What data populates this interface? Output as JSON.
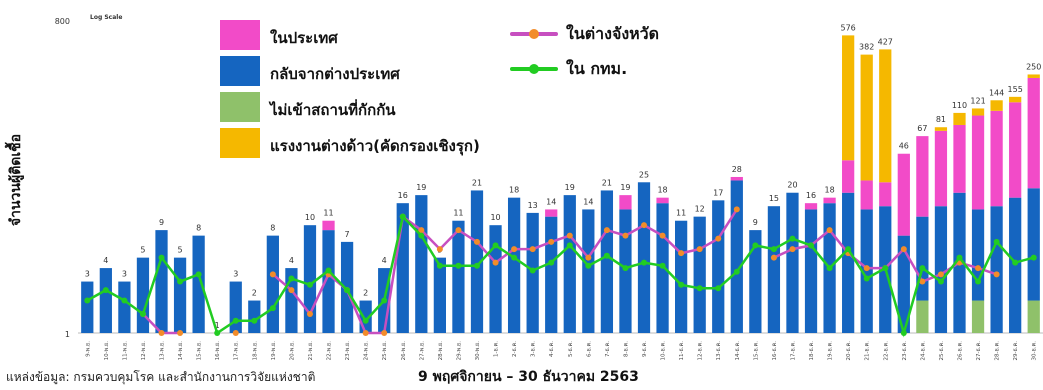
{
  "chart_data": {
    "type": "bar",
    "scale_note": "Log Scale",
    "ylabel": "จำนวนผู้ติดเชื้อ",
    "xlabel": "9 พฤศจิกายน – 30 ธันวาคม 2563",
    "y_ticks": [
      "1",
      "800"
    ],
    "ylim": [
      1,
      800
    ],
    "y_scale": "log",
    "source": "แหล่งข้อมูล: กรมควบคุมโรค และสำนักงานการวิจัยแห่งชาติ",
    "categories": [
      "9-พ.ย.",
      "10-พ.ย.",
      "11-พ.ย.",
      "12-พ.ย.",
      "13-พ.ย.",
      "14-พ.ย.",
      "15-พ.ย.",
      "16-พ.ย.",
      "17-พ.ย.",
      "18-พ.ย.",
      "19-พ.ย.",
      "20-พ.ย.",
      "21-พ.ย.",
      "22-พ.ย.",
      "23-พ.ย.",
      "24-พ.ย.",
      "25-พ.ย.",
      "26-พ.ย.",
      "27-พ.ย.",
      "28-พ.ย.",
      "29-พ.ย.",
      "30-พ.ย.",
      "1-ธ.ค.",
      "2-ธ.ค.",
      "3-ธ.ค.",
      "4-ธ.ค.",
      "5-ธ.ค.",
      "6-ธ.ค.",
      "7-ธ.ค.",
      "8-ธ.ค.",
      "9-ธ.ค.",
      "10-ธ.ค.",
      "11-ธ.ค.",
      "12-ธ.ค.",
      "13-ธ.ค.",
      "14-ธ.ค.",
      "15-ธ.ค.",
      "16-ธ.ค.",
      "17-ธ.ค.",
      "18-ธ.ค.",
      "19-ธ.ค.",
      "20-ธ.ค.",
      "21-ธ.ค.",
      "22-ธ.ค.",
      "23-ธ.ค.",
      "24-ธ.ค.",
      "25-ธ.ค.",
      "26-ธ.ค.",
      "27-ธ.ค.",
      "28-ธ.ค.",
      "29-ธ.ค.",
      "30-ธ.ค."
    ],
    "totals": [
      3,
      4,
      3,
      5,
      9,
      5,
      8,
      1,
      3,
      2,
      8,
      4,
      10,
      11,
      7,
      2,
      4,
      16,
      19,
      5,
      11,
      21,
      10,
      18,
      13,
      14,
      19,
      14,
      21,
      19,
      25,
      18,
      11,
      12,
      17,
      28,
      9,
      15,
      20,
      16,
      18,
      576,
      382,
      427,
      46,
      67,
      81,
      110,
      121,
      144,
      155,
      250
    ],
    "series": [
      {
        "name": "ในประเทศ",
        "color": "#f24bc8",
        "values": [
          0,
          0,
          0,
          0,
          0,
          0,
          0,
          0,
          0,
          0,
          0,
          0,
          0,
          2,
          0,
          0,
          0,
          0,
          0,
          0,
          0,
          0,
          0,
          0,
          0,
          2,
          0,
          0,
          0,
          5,
          0,
          2,
          0,
          0,
          0,
          2,
          0,
          0,
          0,
          2,
          2,
          20,
          12,
          10,
          38,
          55,
          60,
          65,
          90,
          100,
          120,
          210
        ]
      },
      {
        "name": "กลับจากต่างประเทศ",
        "color": "#1565c0",
        "values": [
          3,
          4,
          3,
          5,
          9,
          5,
          8,
          1,
          3,
          2,
          8,
          4,
          10,
          9,
          7,
          2,
          4,
          16,
          19,
          5,
          11,
          21,
          10,
          18,
          13,
          12,
          19,
          14,
          21,
          14,
          25,
          16,
          11,
          12,
          17,
          26,
          9,
          15,
          20,
          14,
          16,
          20,
          14,
          15,
          8,
          10,
          15,
          20,
          12,
          15,
          18,
          20
        ]
      },
      {
        "name": "ไม่เข้าสถานที่กักกัน",
        "color": "#8fc16a",
        "values": [
          0,
          0,
          0,
          0,
          0,
          0,
          0,
          0,
          0,
          0,
          0,
          0,
          0,
          0,
          0,
          0,
          0,
          0,
          0,
          0,
          0,
          0,
          0,
          0,
          0,
          0,
          0,
          0,
          0,
          0,
          0,
          0,
          0,
          0,
          0,
          0,
          0,
          0,
          0,
          0,
          0,
          0,
          0,
          0,
          0,
          2,
          0,
          0,
          2,
          0,
          0,
          2
        ]
      },
      {
        "name": "แรงงานต่างด้าว(คัดกรองเชิงรุก)",
        "color": "#f5b800",
        "values": [
          0,
          0,
          0,
          0,
          0,
          0,
          0,
          0,
          0,
          0,
          0,
          0,
          0,
          0,
          0,
          0,
          0,
          0,
          0,
          0,
          0,
          0,
          0,
          0,
          0,
          0,
          0,
          0,
          0,
          0,
          0,
          0,
          0,
          0,
          0,
          0,
          0,
          0,
          0,
          0,
          0,
          536,
          356,
          402,
          0,
          0,
          6,
          25,
          17,
          29,
          17,
          18
        ]
      },
      {
        "name": "ในต่างจังหวัด",
        "color": "#c74fc0",
        "kind": "line",
        "values": [
          null,
          null,
          null,
          1.5,
          1,
          1,
          null,
          null,
          1,
          null,
          3.5,
          2.5,
          1.5,
          3.5,
          2.5,
          1,
          1,
          12,
          9,
          6,
          9,
          7,
          4.5,
          6,
          6,
          7,
          8,
          5,
          9,
          8,
          10,
          8,
          5.5,
          6,
          7.5,
          14,
          null,
          5,
          6,
          6.5,
          9,
          5.5,
          4,
          4,
          6,
          3,
          3.5,
          4.5,
          4,
          3.5,
          null,
          null
        ]
      },
      {
        "name": "ใน กทม.",
        "color": "#22cc22",
        "kind": "line",
        "values": [
          2,
          2.5,
          2,
          1.5,
          5,
          3,
          3.5,
          1,
          1.3,
          1.3,
          1.7,
          3.2,
          2.8,
          3.8,
          2.5,
          1.3,
          2,
          12,
          8,
          4.2,
          4.2,
          4.2,
          6.5,
          5,
          3.8,
          4.5,
          6.5,
          4.2,
          5.2,
          4,
          4.5,
          4.2,
          2.8,
          2.6,
          2.6,
          3.7,
          6.5,
          6,
          7.5,
          6.5,
          4,
          6,
          3.2,
          4,
          1,
          4,
          3,
          5,
          3,
          7,
          4.5,
          5
        ]
      }
    ],
    "legend": "top-left"
  }
}
